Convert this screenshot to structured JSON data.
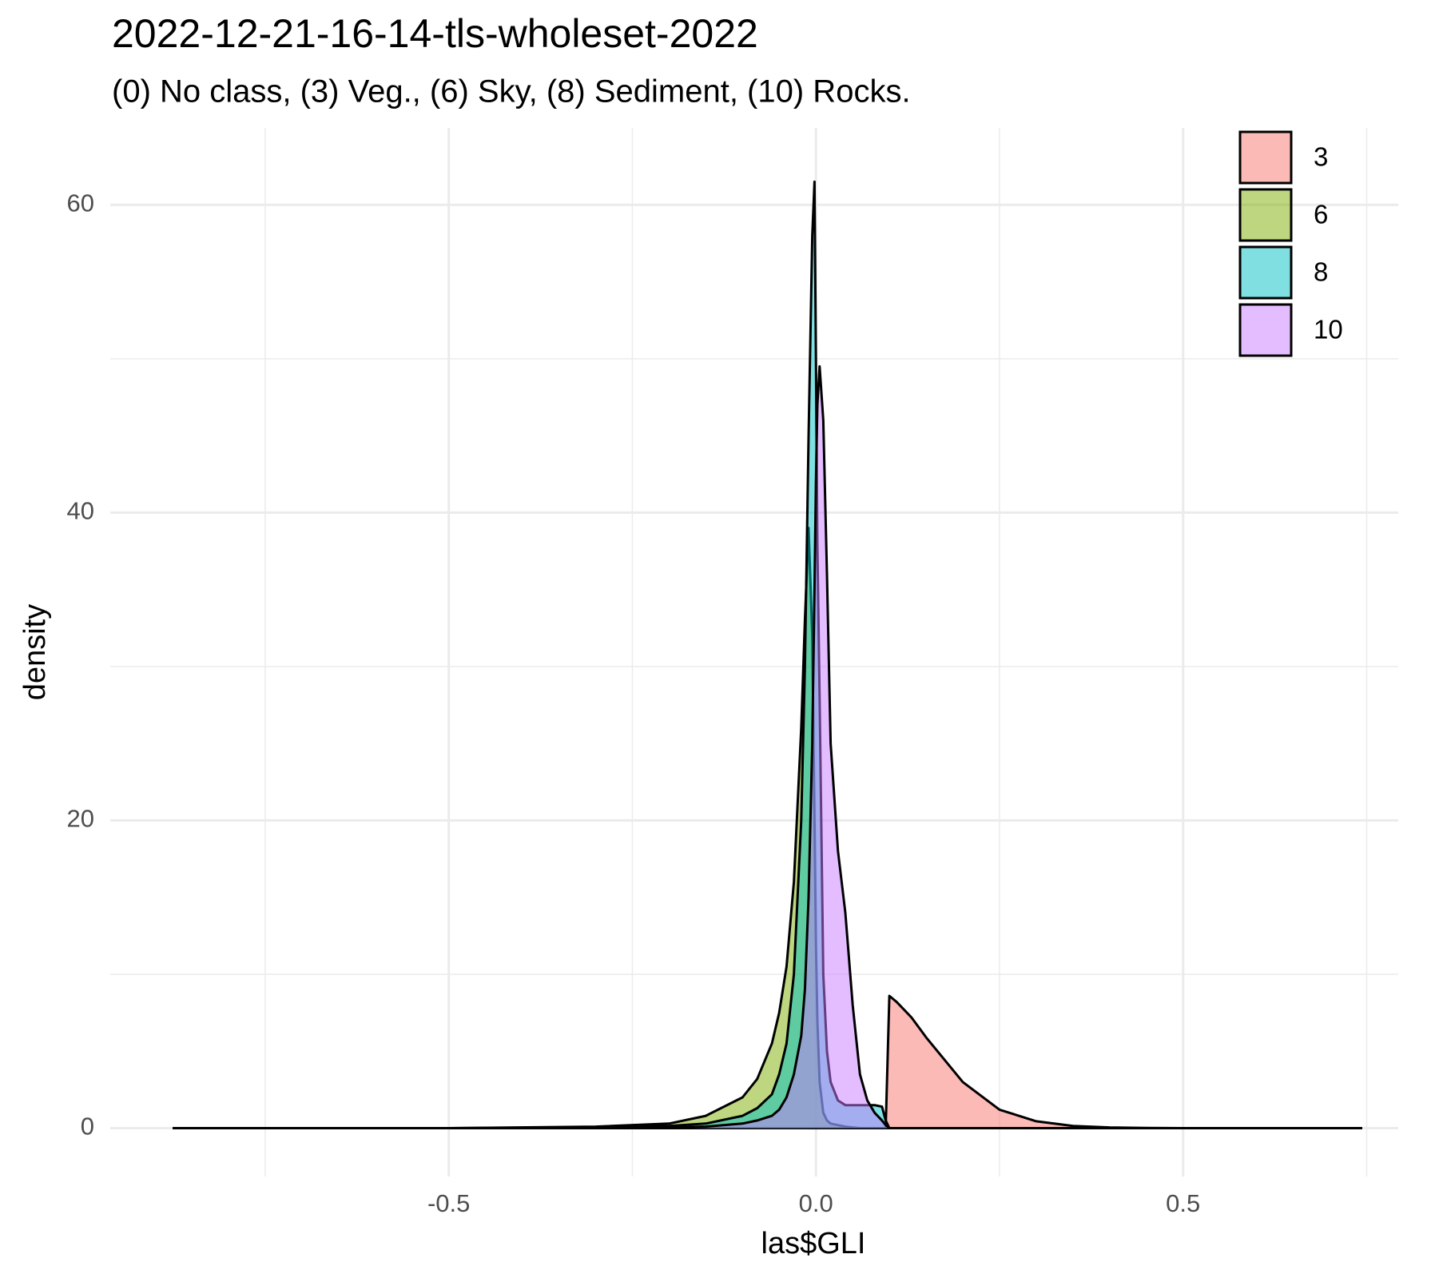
{
  "chart_data": {
    "type": "density",
    "title": "2022-12-21-16-14-tls-wholeset-2022",
    "subtitle": "(0) No class, (3) Veg., (6) Sky, (8) Sediment, (10) Rocks.",
    "xlabel": "las$GLI",
    "ylabel": "density",
    "x": [
      -0.876,
      -0.5,
      -0.3,
      -0.2,
      -0.15,
      -0.1,
      -0.08,
      -0.06,
      -0.05,
      -0.04,
      -0.03,
      -0.02,
      -0.015,
      -0.01,
      -0.005,
      -0.002,
      0,
      0.002,
      0.005,
      0.01,
      0.015,
      0.02,
      0.03,
      0.04,
      0.05,
      0.06,
      0.07,
      0.08,
      0.09,
      0.095,
      0.1,
      0.11,
      0.13,
      0.15,
      0.2,
      0.25,
      0.3,
      0.35,
      0.4,
      0.45,
      0.5,
      0.6,
      0.744
    ],
    "series": [
      {
        "name": "3",
        "color": "#F8766D",
        "values": [
          0,
          0,
          0,
          0,
          0,
          0,
          0,
          0,
          0,
          0,
          0,
          0,
          0,
          0,
          0,
          0,
          0,
          0,
          0,
          0,
          0,
          0,
          0,
          0,
          0,
          0,
          0,
          0,
          0,
          0,
          8.6,
          8.2,
          7.2,
          5.9,
          3.0,
          1.2,
          0.45,
          0.15,
          0.05,
          0.01,
          0,
          0,
          0
        ]
      },
      {
        "name": "6",
        "color": "#7CAE00",
        "values": [
          0,
          0,
          0.1,
          0.3,
          0.8,
          2,
          3.2,
          5.5,
          7.5,
          10.5,
          16,
          26,
          33,
          39,
          32,
          20,
          12,
          7,
          3,
          1,
          0.5,
          0.3,
          0.2,
          0.1,
          0.05,
          0,
          0,
          0,
          0,
          0,
          0,
          0,
          0,
          0,
          0,
          0,
          0,
          0,
          0,
          0,
          0,
          0,
          0
        ]
      },
      {
        "name": "8",
        "color": "#00BFC4",
        "values": [
          0,
          0,
          0.05,
          0.15,
          0.3,
          0.8,
          1.3,
          2.2,
          3.5,
          5.5,
          10,
          20,
          30,
          45,
          58,
          61.5,
          50,
          38,
          28,
          10,
          5,
          3,
          1.8,
          1.5,
          1.5,
          1.5,
          1.5,
          1.5,
          1.4,
          0.5,
          0,
          0,
          0,
          0,
          0,
          0,
          0,
          0,
          0,
          0,
          0,
          0,
          0
        ]
      },
      {
        "name": "10",
        "color": "#C77CFF",
        "values": [
          0,
          0,
          0,
          0.05,
          0.1,
          0.3,
          0.5,
          0.8,
          1.2,
          2,
          3.5,
          6,
          9,
          15,
          25,
          35,
          42,
          47,
          49.5,
          46,
          36,
          25,
          18,
          14,
          8,
          3.5,
          1.8,
          1,
          0.5,
          0.2,
          0,
          0,
          0,
          0,
          0,
          0,
          0,
          0,
          0,
          0,
          0,
          0,
          0
        ]
      }
    ],
    "fill_opacity": 0.5,
    "xlim": [
      -0.961,
      0.793
    ],
    "ylim": [
      -3.14,
      65
    ],
    "xticks": [
      -0.5,
      {
        "value": 0,
        "label": "0.0"
      },
      0.5
    ],
    "yticks": [
      0,
      20,
      40,
      60
    ],
    "xminorticks": [
      -0.75,
      -0.25,
      0.25,
      0.75
    ],
    "yminorticks": [
      10,
      30,
      50
    ],
    "grid": true,
    "legend": "top-right"
  }
}
